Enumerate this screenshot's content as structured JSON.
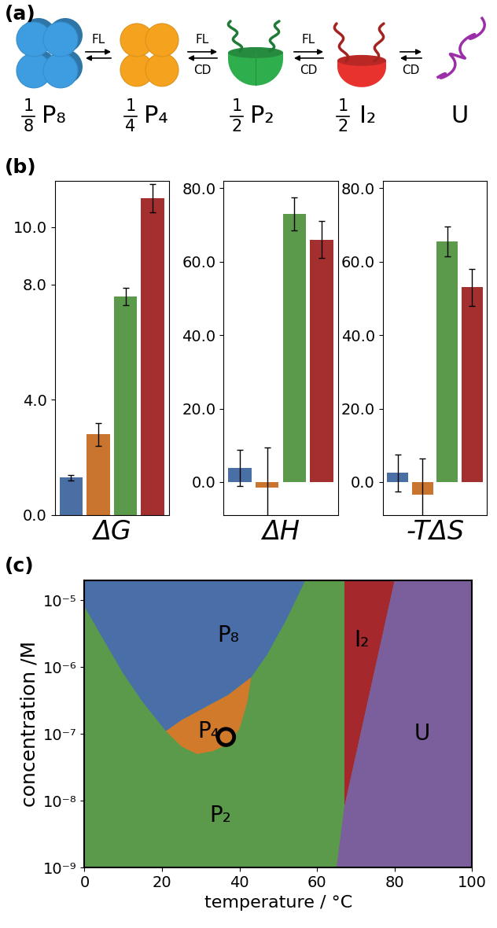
{
  "diagram": {
    "panel_label": "(a)",
    "species": [
      {
        "label": "P₈",
        "numerator": "1",
        "denominator": "8",
        "color": "#3d9de0"
      },
      {
        "label": "P₄",
        "numerator": "1",
        "denominator": "4",
        "color": "#f5a21f"
      },
      {
        "label": "P₂",
        "numerator": "1",
        "denominator": "2",
        "color": "#2fae4e"
      },
      {
        "label": "I₂",
        "numerator": "1",
        "denominator": "2",
        "color": "#e8322e"
      },
      {
        "label": "U",
        "color": "#9b2fa8"
      }
    ],
    "transitions": [
      {
        "from": 0,
        "to": 1,
        "above": "FL"
      },
      {
        "from": 1,
        "to": 2,
        "above": "FL",
        "below": "CD"
      },
      {
        "from": 2,
        "to": 3,
        "above": "FL",
        "below": "CD"
      },
      {
        "from": 3,
        "to": 4,
        "below": "CD"
      }
    ]
  },
  "chart_data": [
    {
      "type": "bar",
      "panel_label": "(b)",
      "xlabel": "ΔG",
      "categories": [
        null,
        null,
        null,
        null
      ],
      "values": [
        1.3,
        2.8,
        7.6,
        11.0
      ],
      "errors": [
        0.1,
        0.4,
        0.3,
        0.5
      ],
      "colors": [
        "#4a6fa5",
        "#c97530",
        "#5b9a4a",
        "#a3302e"
      ],
      "ylim": [
        0,
        11.6
      ],
      "yticks": [
        {
          "value": 0,
          "label": "0.0"
        },
        {
          "value": 4,
          "label": "4.0"
        },
        {
          "value": 8,
          "label": "8.0"
        },
        {
          "value": 10,
          "label": "10.0"
        }
      ],
      "tick_labels": "y"
    },
    {
      "type": "bar",
      "xlabel": "ΔH",
      "categories": [
        null,
        null,
        null,
        null
      ],
      "values": [
        3.8,
        -1.5,
        73.0,
        66.0
      ],
      "errors": [
        5.0,
        11.0,
        4.5,
        5.0
      ],
      "colors": [
        "#4a6fa5",
        "#c97530",
        "#5b9a4a",
        "#a3302e"
      ],
      "ylim": [
        -9,
        82
      ],
      "yticks": [
        {
          "value": 0,
          "label": "0.0"
        },
        {
          "value": 20,
          "label": "20.0"
        },
        {
          "value": 40,
          "label": "40.0"
        },
        {
          "value": 60,
          "label": "60.0"
        },
        {
          "value": 80,
          "label": "80.0"
        }
      ],
      "tick_labels": "y"
    },
    {
      "type": "bar",
      "xlabel": "-TΔS",
      "categories": [
        null,
        null,
        null,
        null
      ],
      "values": [
        2.5,
        -3.5,
        65.5,
        53.0
      ],
      "errors": [
        5.0,
        10.0,
        4.0,
        5.0
      ],
      "colors": [
        "#4a6fa5",
        "#c97530",
        "#5b9a4a",
        "#a3302e"
      ],
      "ylim": [
        -9,
        82
      ],
      "yticks": [
        {
          "value": 0,
          "label": "0.0"
        },
        {
          "value": 20,
          "label": "20.0"
        },
        {
          "value": 40,
          "label": "40.0"
        },
        {
          "value": 60,
          "label": "60.0"
        },
        {
          "value": 80,
          "label": "80.0"
        }
      ],
      "tick_labels": "y"
    },
    {
      "type": "area",
      "panel_label": "(c)",
      "log": "y",
      "xlabel": "temperature / °C",
      "ylabel": "concentration /M",
      "xlim": [
        0,
        100
      ],
      "xticks": [
        0,
        20,
        40,
        60,
        80,
        100
      ],
      "ylim": [
        1e-09,
        2e-05
      ],
      "yticks": [
        {
          "value": 1e-09,
          "label": "10⁻⁹"
        },
        {
          "value": 1e-08,
          "label": "10⁻⁸"
        },
        {
          "value": 1e-07,
          "label": "10⁻⁷"
        },
        {
          "value": 1e-06,
          "label": "10⁻⁶"
        },
        {
          "value": 1e-05,
          "label": "10⁻⁵"
        }
      ],
      "series": [
        {
          "name": "P₂",
          "color": "#5b9a4a",
          "label_at": [
            35,
            6e-09
          ],
          "x": [
            0,
            100,
            100,
            0
          ],
          "y": [
            1e-09,
            1e-09,
            2e-05,
            2e-05
          ]
        },
        {
          "name": "P₈",
          "color": "#4a6ea8",
          "label_at": [
            37,
            3e-06
          ],
          "x": [
            0,
            5,
            10,
            15,
            21,
            25,
            30,
            37,
            43,
            47,
            52,
            57,
            0
          ],
          "y": [
            8e-06,
            2.5e-06,
            8e-07,
            3e-07,
            1.1e-07,
            1.6e-07,
            2.3e-07,
            3.8e-07,
            7e-07,
            1.5e-06,
            5e-06,
            2e-05,
            2e-05
          ]
        },
        {
          "name": "P₄",
          "color": "#d27a2c",
          "label_at": [
            32,
            1.1e-07
          ],
          "x": [
            21,
            25,
            29,
            33,
            37,
            40,
            42,
            43,
            37,
            30,
            25
          ],
          "y": [
            1.1e-07,
            6.5e-08,
            5e-08,
            5.5e-08,
            7e-08,
            1.2e-07,
            3e-07,
            7e-07,
            3.8e-07,
            2.3e-07,
            1.6e-07
          ]
        },
        {
          "name": "I₂",
          "color": "#a4282c",
          "label_at": [
            71.5,
            2.5e-06
          ],
          "x": [
            67,
            67,
            80
          ],
          "y": [
            8e-09,
            2e-05,
            2e-05
          ]
        },
        {
          "name": "U",
          "color": "#7b5e9c",
          "label_at": [
            87,
            1e-07
          ],
          "x": [
            65,
            67,
            80,
            100,
            100
          ],
          "y": [
            1e-09,
            8e-09,
            2e-05,
            2e-05,
            1e-09
          ]
        },
        {
          "type": "scatter",
          "marker": "o",
          "color": "#000000",
          "x": [
            36.5
          ],
          "y": [
            9e-08
          ]
        }
      ]
    }
  ]
}
